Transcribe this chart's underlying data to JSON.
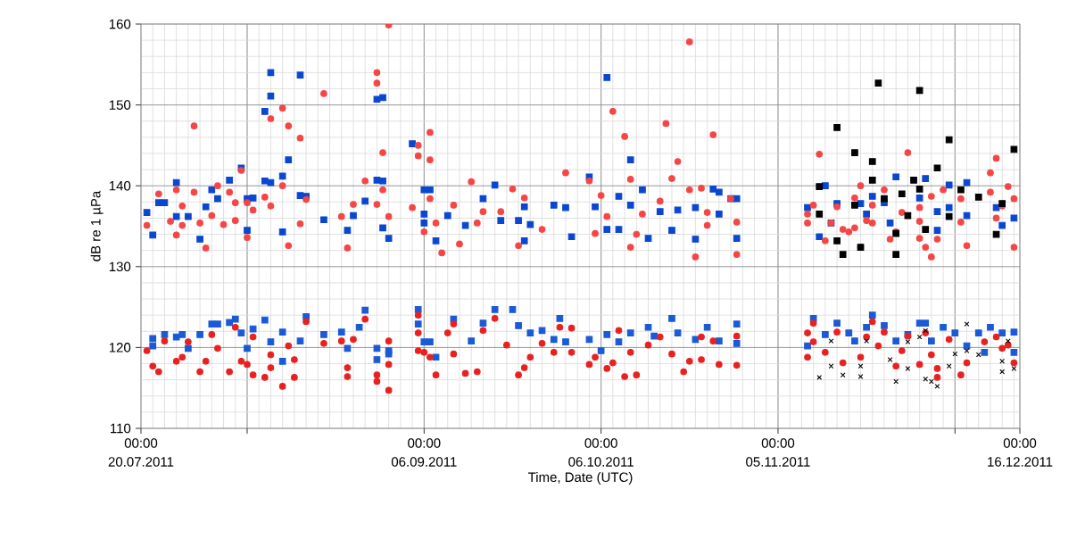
{
  "chart_data": {
    "type": "scatter",
    "xlabel": "Time, Date (UTC)",
    "ylabel": "dB re 1 µPa",
    "xlim": [
      "2011-07-20",
      "2011-12-16"
    ],
    "xticks": [
      {
        "value": "2011-07-20",
        "label": "00:00 20.07.2011"
      },
      {
        "value": "2011-08-07",
        "label": null
      },
      {
        "value": "2011-09-06",
        "label": "00:00 06.09.2011"
      },
      {
        "value": "2011-10-06",
        "label": "00:00 06.10.2011"
      },
      {
        "value": "2011-11-05",
        "label": "00:00 05.11.2011"
      },
      {
        "value": "2011-12-05",
        "label": null
      },
      {
        "value": "2011-12-16",
        "label": "00:00 16.12.2011"
      }
    ],
    "ylim": [
      110,
      160
    ],
    "yticks": [
      110,
      120,
      130,
      140,
      150,
      160
    ],
    "grid": true,
    "series": [
      {
        "color": "#0a47d1",
        "marker": "square",
        "x": [
          "2011-07-22",
          "2011-07-21",
          "2011-07-23",
          "2011-07-24",
          "2011-07-26",
          "2011-07-26",
          "2011-07-28",
          "2011-07-30",
          "2011-07-31",
          "2011-08-01",
          "2011-08-02",
          "2011-08-04",
          "2011-08-06",
          "2011-08-07",
          "2011-08-08",
          "2011-08-07",
          "2011-08-10",
          "2011-08-11",
          "2011-08-10",
          "2011-08-11",
          "2011-08-11",
          "2011-08-13",
          "2011-08-14",
          "2011-08-13",
          "2011-08-16",
          "2011-08-16",
          "2011-08-17",
          "2011-08-20",
          "2011-08-24",
          "2011-08-25",
          "2011-08-27",
          "2011-08-29",
          "2011-08-30",
          "2011-08-29",
          "2011-08-30",
          "2011-08-30",
          "2011-08-31",
          "2011-09-04",
          "2011-09-07",
          "2011-09-06",
          "2011-09-06",
          "2011-09-06",
          "2011-09-08",
          "2011-09-10",
          "2011-09-13",
          "2011-09-16",
          "2011-09-18",
          "2011-09-19",
          "2011-09-22",
          "2011-09-23",
          "2011-09-24",
          "2011-09-23",
          "2011-09-28",
          "2011-09-30",
          "2011-10-01",
          "2011-10-04",
          "2011-10-05",
          "2011-10-07",
          "2011-10-07",
          "2011-10-09",
          "2011-10-09",
          "2011-10-11",
          "2011-10-11",
          "2011-10-13",
          "2011-10-14",
          "2011-10-16",
          "2011-10-18",
          "2011-10-19",
          "2011-10-22",
          "2011-10-22",
          "2011-10-25",
          "2011-10-26",
          "2011-10-26",
          "2011-10-28",
          "2011-10-29",
          "2011-10-29",
          "2011-11-10",
          "2011-11-13",
          "2011-11-12",
          "2011-11-15",
          "2011-11-14",
          "2011-11-19",
          "2011-11-21",
          "2011-11-20",
          "2011-11-23",
          "2011-11-25",
          "2011-11-24",
          "2011-11-29",
          "2011-11-30",
          "2011-12-02",
          "2011-12-02",
          "2011-12-04",
          "2011-12-04",
          "2011-12-07",
          "2011-12-07",
          "2011-12-12",
          "2011-12-13",
          "2011-12-15"
        ],
        "values": [
          133.9,
          136.7,
          137.9,
          137.9,
          140.4,
          136.2,
          136.2,
          133.4,
          137.4,
          139.5,
          138.4,
          140.7,
          142.2,
          138.4,
          138.5,
          134.5,
          140.6,
          140.4,
          149.2,
          151.1,
          154.0,
          141.2,
          143.2,
          134.3,
          153.7,
          138.8,
          138.7,
          135.8,
          134.5,
          136.3,
          138.1,
          150.7,
          150.9,
          140.7,
          140.6,
          134.8,
          133.5,
          145.2,
          139.5,
          135.4,
          139.5,
          136.5,
          133.2,
          136.3,
          135.1,
          138.4,
          140.1,
          135.7,
          135.7,
          137.4,
          135.2,
          133.2,
          137.6,
          137.3,
          133.7,
          141.1,
          137.4,
          134.6,
          153.4,
          134.6,
          138.7,
          137.6,
          143.2,
          139.5,
          133.5,
          136.8,
          134.5,
          137.0,
          137.3,
          133.4,
          139.6,
          139.2,
          136.5,
          138.4,
          138.4,
          133.5,
          137.3,
          140.0,
          133.7,
          137.8,
          135.4,
          137.8,
          138.7,
          136.5,
          137.9,
          141.1,
          135.4,
          138.5,
          140.9,
          136.8,
          134.5,
          140.1,
          137.3,
          140.4,
          136.3,
          137.3,
          135.1,
          136.0
        ]
      },
      {
        "color": "#f54545",
        "marker": "circle",
        "x": [
          "2011-08-31",
          "2011-08-29",
          "2011-08-29",
          "2011-08-20",
          "2011-08-13",
          "2011-07-29",
          "2011-08-11",
          "2011-08-14",
          "2011-08-16",
          "2011-08-30",
          "2011-09-07",
          "2011-09-05",
          "2011-09-07",
          "2011-09-05",
          "2011-08-06",
          "2011-08-27",
          "2011-07-23",
          "2011-07-26",
          "2011-07-29",
          "2011-08-02",
          "2011-08-04",
          "2011-08-13",
          "2011-08-10",
          "2011-08-17",
          "2011-08-30",
          "2011-07-27",
          "2011-08-05",
          "2011-08-07",
          "2011-08-11",
          "2011-08-25",
          "2011-08-29",
          "2011-09-04",
          "2011-07-21",
          "2011-07-25",
          "2011-07-27",
          "2011-07-30",
          "2011-08-01",
          "2011-08-03",
          "2011-08-05",
          "2011-08-08",
          "2011-08-16",
          "2011-08-23",
          "2011-08-31",
          "2011-07-26",
          "2011-07-31",
          "2011-08-07",
          "2011-08-14",
          "2011-08-24",
          "2011-09-06",
          "2011-10-21",
          "2011-10-08",
          "2011-10-17",
          "2011-10-25",
          "2011-10-10",
          "2011-10-19",
          "2011-09-30",
          "2011-10-11",
          "2011-09-14",
          "2011-10-04",
          "2011-10-18",
          "2011-09-21",
          "2011-10-21",
          "2011-10-23",
          "2011-10-06",
          "2011-09-07",
          "2011-09-11",
          "2011-09-23",
          "2011-10-16",
          "2011-10-28",
          "2011-09-16",
          "2011-09-19",
          "2011-10-07",
          "2011-10-13",
          "2011-10-24",
          "2011-09-08",
          "2011-09-15",
          "2011-09-26",
          "2011-10-05",
          "2011-10-12",
          "2011-10-29",
          "2011-09-09",
          "2011-09-12",
          "2011-09-22",
          "2011-10-11",
          "2011-10-22",
          "2011-10-29",
          "2011-10-24",
          "2011-11-12",
          "2011-11-27",
          "2011-12-12",
          "2011-12-11",
          "2011-11-19",
          "2011-11-23",
          "2011-12-03",
          "2011-12-14",
          "2011-12-11",
          "2011-12-01",
          "2011-11-18",
          "2011-12-15",
          "2011-12-06",
          "2011-11-11",
          "2011-11-15",
          "2011-11-21",
          "2011-11-29",
          "2011-12-13",
          "2011-11-10",
          "2011-11-26",
          "2011-11-10",
          "2011-11-14",
          "2011-11-20",
          "2011-11-21",
          "2011-11-29",
          "2011-12-06",
          "2011-12-12",
          "2011-11-16",
          "2011-11-18",
          "2011-11-25",
          "2011-11-13",
          "2011-11-19",
          "2011-11-24",
          "2011-11-29",
          "2011-12-02",
          "2011-11-30",
          "2011-12-07",
          "2011-12-15",
          "2011-12-01",
          "2011-11-17"
        ],
        "values": [
          159.9,
          154.0,
          152.7,
          151.4,
          149.6,
          147.4,
          148.3,
          147.4,
          145.9,
          144.1,
          146.6,
          145.0,
          143.2,
          143.7,
          141.9,
          140.6,
          139.0,
          139.5,
          139.2,
          140.0,
          139.2,
          140.0,
          138.6,
          138.3,
          139.5,
          137.5,
          137.9,
          137.9,
          137.5,
          137.7,
          137.7,
          137.3,
          135.1,
          135.6,
          135.1,
          135.4,
          136.3,
          135.2,
          135.7,
          137.0,
          135.3,
          136.2,
          136.2,
          133.9,
          132.3,
          133.6,
          132.6,
          132.3,
          134.3,
          157.8,
          149.2,
          147.7,
          146.3,
          146.1,
          143.0,
          141.6,
          140.8,
          140.5,
          140.6,
          140.9,
          139.6,
          139.5,
          139.7,
          138.8,
          138.4,
          137.6,
          138.5,
          138.1,
          138.4,
          136.8,
          136.8,
          136.2,
          136.5,
          136.7,
          135.4,
          135.4,
          134.6,
          134.1,
          134.0,
          135.5,
          131.7,
          132.8,
          132.6,
          132.4,
          131.2,
          131.5,
          135.1,
          143.9,
          144.1,
          143.4,
          141.6,
          140.0,
          139.5,
          139.5,
          139.9,
          139.2,
          138.7,
          138.5,
          138.4,
          138.4,
          137.6,
          137.4,
          137.6,
          137.3,
          137.5,
          136.5,
          136.7,
          135.4,
          135.4,
          135.7,
          135.4,
          135.6,
          135.5,
          136.0,
          134.6,
          134.8,
          134.3,
          133.2,
          132.4,
          133.4,
          133.5,
          133.4,
          132.4,
          132.6,
          132.4,
          131.2,
          134.3
        ]
      },
      {
        "color": "#000000",
        "marker": "square",
        "x": [
          "2011-11-22",
          "2011-11-29",
          "2011-11-15",
          "2011-12-04",
          "2011-12-15",
          "2011-11-18",
          "2011-11-21",
          "2011-12-02",
          "2011-11-21",
          "2011-11-28",
          "2011-11-12",
          "2011-11-26",
          "2011-11-29",
          "2011-12-06",
          "2011-12-09",
          "2011-11-23",
          "2011-11-18",
          "2011-12-13",
          "2011-11-12",
          "2011-11-27",
          "2011-12-04",
          "2011-11-30",
          "2011-11-25",
          "2011-11-15",
          "2011-11-19",
          "2011-12-12",
          "2011-11-16",
          "2011-11-25"
        ],
        "values": [
          152.7,
          151.8,
          147.2,
          145.7,
          144.5,
          144.1,
          143.0,
          142.2,
          140.7,
          140.7,
          139.9,
          139.0,
          139.6,
          139.5,
          138.6,
          138.4,
          137.6,
          137.8,
          136.5,
          136.3,
          136.2,
          134.6,
          134.1,
          133.2,
          132.4,
          134.0,
          131.5,
          131.5
        ]
      },
      {
        "color": "#1a5ad6",
        "marker": "square",
        "x": [
          "2011-07-22",
          "2011-07-24",
          "2011-07-26",
          "2011-07-27",
          "2011-07-30",
          "2011-08-01",
          "2011-08-02",
          "2011-08-04",
          "2011-08-05",
          "2011-08-06",
          "2011-08-08",
          "2011-08-10",
          "2011-08-13",
          "2011-08-16",
          "2011-08-17",
          "2011-08-20",
          "2011-08-23",
          "2011-08-27",
          "2011-08-26",
          "2011-08-24",
          "2011-08-29",
          "2011-08-31",
          "2011-08-31",
          "2011-08-29",
          "2011-09-05",
          "2011-09-05",
          "2011-09-06",
          "2011-07-22",
          "2011-07-28",
          "2011-08-07",
          "2011-08-13",
          "2011-08-11",
          "2011-09-07",
          "2011-09-08",
          "2011-09-11",
          "2011-09-14",
          "2011-09-16",
          "2011-09-18",
          "2011-09-21",
          "2011-09-22",
          "2011-09-24",
          "2011-09-26",
          "2011-09-28",
          "2011-09-29",
          "2011-09-30",
          "2011-10-04",
          "2011-10-07",
          "2011-10-09",
          "2011-10-11",
          "2011-10-14",
          "2011-10-15",
          "2011-10-18",
          "2011-10-19",
          "2011-10-22",
          "2011-10-24",
          "2011-10-26",
          "2011-10-29",
          "2011-10-29",
          "2011-10-06",
          "2011-11-11",
          "2011-11-10",
          "2011-11-13",
          "2011-11-15",
          "2011-11-17",
          "2011-11-18",
          "2011-11-20",
          "2011-11-21",
          "2011-11-23",
          "2011-11-25",
          "2011-11-27",
          "2011-11-29",
          "2011-11-30",
          "2011-12-01",
          "2011-12-03",
          "2011-12-05",
          "2011-12-07",
          "2011-12-09",
          "2011-12-11",
          "2011-12-13",
          "2011-12-15",
          "2011-12-10",
          "2011-12-15"
        ],
        "values": [
          121.1,
          121.6,
          121.3,
          121.6,
          121.6,
          122.9,
          122.9,
          123.1,
          123.5,
          121.8,
          122.3,
          123.4,
          121.9,
          120.8,
          123.8,
          121.6,
          121.9,
          124.6,
          122.5,
          119.9,
          119.9,
          119.6,
          119.2,
          118.5,
          124.7,
          122.9,
          120.7,
          120.2,
          119.9,
          119.9,
          118.3,
          120.7,
          120.7,
          118.8,
          123.5,
          120.8,
          123.0,
          124.7,
          124.7,
          122.7,
          121.8,
          122.1,
          121.0,
          123.6,
          120.7,
          121.0,
          121.6,
          120.7,
          121.8,
          122.5,
          121.4,
          123.6,
          121.8,
          121.0,
          122.5,
          120.8,
          122.9,
          120.5,
          119.6,
          123.6,
          120.2,
          121.6,
          123.0,
          121.8,
          120.8,
          122.5,
          124.0,
          122.7,
          120.8,
          121.6,
          123.0,
          123.0,
          120.8,
          122.5,
          121.8,
          120.2,
          121.8,
          122.5,
          121.8,
          121.9,
          119.4,
          119.4
        ]
      },
      {
        "color": "#e82020",
        "marker": "circle",
        "x": [
          "2011-07-21",
          "2011-07-22",
          "2011-07-23",
          "2011-07-24",
          "2011-07-26",
          "2011-07-27",
          "2011-07-28",
          "2011-07-30",
          "2011-07-31",
          "2011-08-01",
          "2011-08-02",
          "2011-08-04",
          "2011-08-05",
          "2011-08-06",
          "2011-08-07",
          "2011-08-08",
          "2011-08-08",
          "2011-08-10",
          "2011-08-11",
          "2011-08-11",
          "2011-08-13",
          "2011-08-14",
          "2011-08-15",
          "2011-08-15",
          "2011-08-17",
          "2011-08-20",
          "2011-08-23",
          "2011-08-24",
          "2011-08-24",
          "2011-08-27",
          "2011-08-25",
          "2011-08-29",
          "2011-08-29",
          "2011-08-31",
          "2011-08-31",
          "2011-08-31",
          "2011-09-05",
          "2011-09-05",
          "2011-09-06",
          "2011-09-05",
          "2011-09-07",
          "2011-09-08",
          "2011-09-10",
          "2011-09-11",
          "2011-09-11",
          "2011-09-13",
          "2011-09-15",
          "2011-09-16",
          "2011-09-18",
          "2011-09-20",
          "2011-09-22",
          "2011-09-23",
          "2011-09-24",
          "2011-09-26",
          "2011-09-28",
          "2011-09-29",
          "2011-10-01",
          "2011-10-01",
          "2011-10-04",
          "2011-10-05",
          "2011-10-07",
          "2011-10-08",
          "2011-10-09",
          "2011-10-10",
          "2011-10-11",
          "2011-10-12",
          "2011-10-14",
          "2011-10-16",
          "2011-10-18",
          "2011-10-20",
          "2011-10-21",
          "2011-10-23",
          "2011-10-23",
          "2011-10-25",
          "2011-10-26",
          "2011-10-29",
          "2011-10-29",
          "2011-11-10",
          "2011-11-11",
          "2011-11-10",
          "2011-11-11",
          "2011-11-13",
          "2011-11-15",
          "2011-11-16",
          "2011-11-19",
          "2011-11-20",
          "2011-11-21",
          "2011-11-22",
          "2011-11-23",
          "2011-11-25",
          "2011-11-26",
          "2011-11-27",
          "2011-11-29",
          "2011-12-01",
          "2011-11-30",
          "2011-12-02",
          "2011-12-02",
          "2011-12-04",
          "2011-12-06",
          "2011-12-07",
          "2011-12-10",
          "2011-12-12",
          "2011-12-13",
          "2011-12-15",
          "2011-12-14"
        ],
        "values": [
          119.6,
          117.7,
          117.0,
          120.8,
          118.3,
          118.8,
          120.7,
          117.0,
          118.3,
          121.6,
          119.9,
          117.0,
          122.5,
          118.3,
          117.9,
          116.6,
          121.3,
          116.3,
          117.5,
          119.1,
          115.2,
          120.2,
          116.3,
          118.5,
          123.2,
          120.5,
          120.8,
          117.5,
          116.4,
          123.5,
          121.0,
          116.6,
          115.8,
          117.9,
          114.7,
          120.8,
          124.0,
          121.8,
          119.4,
          119.6,
          118.8,
          116.6,
          121.8,
          122.9,
          119.2,
          116.8,
          117.0,
          122.1,
          123.6,
          120.3,
          116.6,
          117.5,
          118.8,
          120.5,
          119.4,
          122.5,
          122.4,
          119.4,
          117.9,
          118.8,
          117.4,
          118.1,
          122.1,
          116.4,
          119.4,
          116.6,
          120.3,
          121.3,
          119.2,
          117.0,
          118.3,
          118.5,
          121.3,
          120.8,
          117.9,
          121.4,
          117.8,
          118.8,
          123.0,
          121.8,
          120.7,
          119.4,
          121.9,
          118.1,
          118.8,
          121.3,
          123.2,
          120.2,
          121.9,
          117.7,
          119.6,
          121.4,
          117.9,
          119.1,
          121.8,
          117.4,
          116.3,
          121.0,
          116.6,
          118.1,
          120.7,
          121.3,
          119.9,
          118.1,
          120.3
        ]
      },
      {
        "color": "#000000",
        "marker": "cross",
        "x": [
          "2011-11-12",
          "2011-11-14",
          "2011-11-16",
          "2011-11-19",
          "2011-11-19",
          "2011-11-14",
          "2011-11-20",
          "2011-11-24",
          "2011-11-25",
          "2011-11-27",
          "2011-11-29",
          "2011-11-30",
          "2011-12-01",
          "2011-12-02",
          "2011-11-30",
          "2011-12-04",
          "2011-12-05",
          "2011-12-07",
          "2011-12-07",
          "2011-12-09",
          "2011-12-13",
          "2011-12-13",
          "2011-12-14",
          "2011-12-15",
          "2011-11-27"
        ],
        "values": [
          116.3,
          117.7,
          116.6,
          116.4,
          117.7,
          120.8,
          120.8,
          118.5,
          115.8,
          117.4,
          121.3,
          116.1,
          115.8,
          115.2,
          122.1,
          117.7,
          119.2,
          122.9,
          119.6,
          119.1,
          117.0,
          118.3,
          120.8,
          117.4,
          120.7
        ]
      }
    ]
  }
}
